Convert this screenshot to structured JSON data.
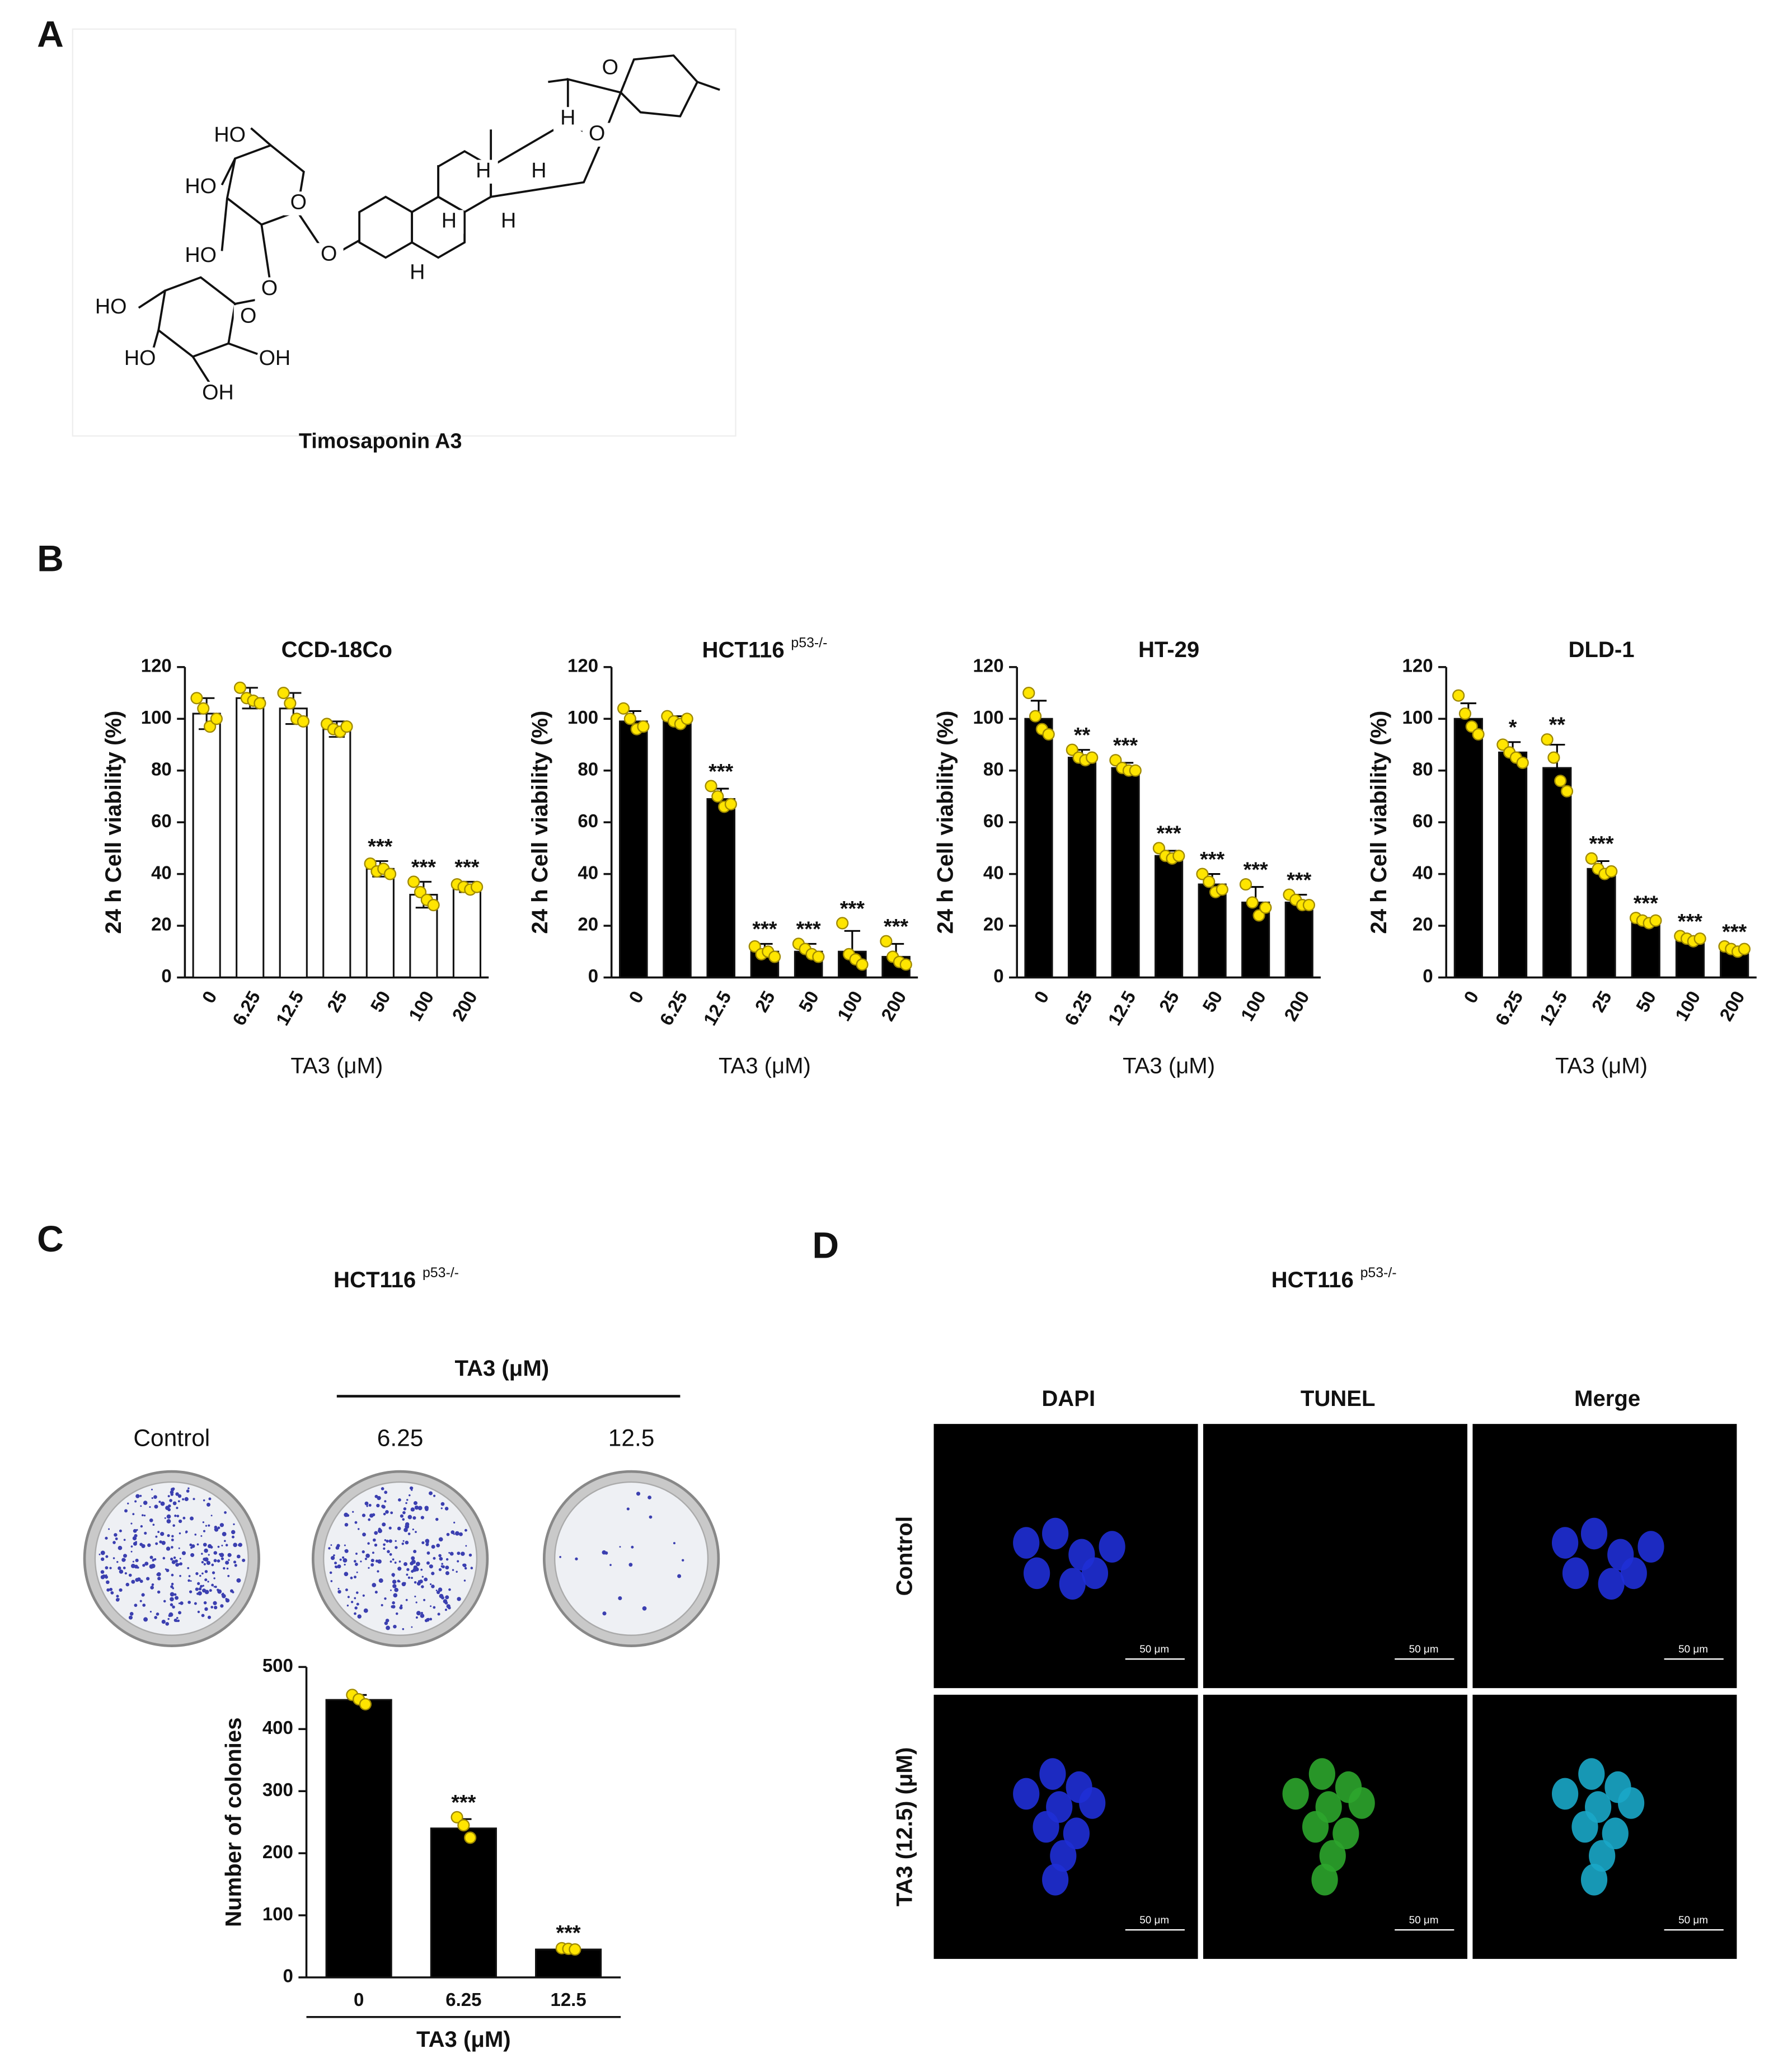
{
  "panel_labels": [
    "A",
    "B",
    "C",
    "D"
  ],
  "structure": {
    "name": "Timosaponin  A3",
    "atoms": [
      "HO",
      "HO",
      "O",
      "HO",
      "O",
      "O",
      "HO",
      "O",
      "HO",
      "OH",
      "OH",
      "H",
      "H",
      "H",
      "H",
      "H",
      "H",
      "O",
      "O"
    ]
  },
  "chart_data": [
    {
      "type": "bar",
      "title": "CCD-18Co",
      "ylabel": "24 h Cell viability (%)",
      "xlabel": "TA3  (μM)",
      "categories": [
        "0",
        "6.25",
        "12.5",
        "25",
        "50",
        "100",
        "200"
      ],
      "values": [
        102,
        108,
        104,
        96,
        42,
        32,
        35
      ],
      "errors": [
        6,
        4,
        6,
        3,
        3,
        5,
        2
      ],
      "points": [
        [
          108,
          104,
          97,
          100
        ],
        [
          112,
          108,
          107,
          106
        ],
        [
          110,
          106,
          100,
          99
        ],
        [
          98,
          96,
          95,
          97
        ],
        [
          44,
          41,
          42,
          40
        ],
        [
          37,
          33,
          30,
          28
        ],
        [
          36,
          35,
          34,
          35
        ]
      ],
      "annotations": [
        null,
        null,
        null,
        null,
        "***",
        "***",
        "***"
      ],
      "ylim": [
        0,
        120
      ],
      "yticks": [
        0,
        20,
        40,
        60,
        80,
        100,
        120
      ],
      "color": "#ffffff",
      "point_color": "#ffe500"
    },
    {
      "type": "bar",
      "title": "HCT116",
      "title_superscript": "p53-/-",
      "ylabel": "24 h Cell viability (%)",
      "xlabel": "TA3  (μM)",
      "categories": [
        "0",
        "6.25",
        "12.5",
        "25",
        "50",
        "100",
        "200"
      ],
      "values": [
        99,
        99,
        69,
        10,
        10,
        10,
        8
      ],
      "errors": [
        4,
        2,
        4,
        3,
        3,
        8,
        5
      ],
      "points": [
        [
          104,
          100,
          96,
          97
        ],
        [
          101,
          99,
          98,
          100
        ],
        [
          74,
          70,
          66,
          67
        ],
        [
          12,
          9,
          10,
          8
        ],
        [
          13,
          11,
          9,
          8
        ],
        [
          21,
          9,
          7,
          5
        ],
        [
          14,
          8,
          6,
          5
        ]
      ],
      "annotations": [
        null,
        null,
        "***",
        "***",
        "***",
        "***",
        "***"
      ],
      "ylim": [
        0,
        120
      ],
      "yticks": [
        0,
        20,
        40,
        60,
        80,
        100,
        120
      ],
      "color": "#000000",
      "point_color": "#ffe500"
    },
    {
      "type": "bar",
      "title": "HT-29",
      "ylabel": "24 h Cell viability (%)",
      "xlabel": "TA3  (μM)",
      "categories": [
        "0",
        "6.25",
        "12.5",
        "25",
        "50",
        "100",
        "200"
      ],
      "values": [
        100,
        85,
        81,
        47,
        36,
        29,
        29
      ],
      "errors": [
        7,
        3,
        2,
        2,
        4,
        6,
        3
      ],
      "points": [
        [
          110,
          101,
          96,
          94
        ],
        [
          88,
          85,
          84,
          85
        ],
        [
          84,
          81,
          80,
          80
        ],
        [
          50,
          47,
          46,
          47
        ],
        [
          40,
          37,
          33,
          34
        ],
        [
          36,
          29,
          24,
          27
        ],
        [
          32,
          30,
          28,
          28
        ]
      ],
      "annotations": [
        null,
        "**",
        "***",
        "***",
        "***",
        "***",
        "***"
      ],
      "ylim": [
        0,
        120
      ],
      "yticks": [
        0,
        20,
        40,
        60,
        80,
        100,
        120
      ],
      "color": "#000000",
      "point_color": "#ffe500"
    },
    {
      "type": "bar",
      "title": "DLD-1",
      "ylabel": "24 h Cell viability (%)",
      "xlabel": "TA3  (μM)",
      "categories": [
        "0",
        "6.25",
        "12.5",
        "25",
        "50",
        "100",
        "200"
      ],
      "values": [
        100,
        87,
        81,
        42,
        22,
        15,
        11
      ],
      "errors": [
        6,
        4,
        9,
        3,
        1,
        1,
        1
      ],
      "points": [
        [
          109,
          102,
          97,
          94
        ],
        [
          90,
          87,
          85,
          83
        ],
        [
          92,
          85,
          76,
          72
        ],
        [
          46,
          42,
          40,
          41
        ],
        [
          23,
          22,
          21,
          22
        ],
        [
          16,
          15,
          14,
          15
        ],
        [
          12,
          11,
          10,
          11
        ]
      ],
      "annotations": [
        null,
        "*",
        "**",
        "***",
        "***",
        "***",
        "***"
      ],
      "ylim": [
        0,
        120
      ],
      "yticks": [
        0,
        20,
        40,
        60,
        80,
        100,
        120
      ],
      "color": "#000000",
      "point_color": "#ffe500"
    },
    {
      "type": "bar",
      "ylabel": "Number of colonies",
      "xlabel": "TA3 (μM)",
      "categories": [
        "0",
        "6.25",
        "12.5"
      ],
      "values": [
        447,
        240,
        45
      ],
      "errors": [
        8,
        15,
        3
      ],
      "points": [
        [
          455,
          448,
          440
        ],
        [
          258,
          245,
          225
        ],
        [
          47,
          46,
          45
        ]
      ],
      "annotations": [
        null,
        "***",
        "***"
      ],
      "ylim": [
        0,
        500
      ],
      "yticks": [
        0,
        100,
        200,
        300,
        400,
        500
      ],
      "color": "#000000",
      "point_color": "#ffe500"
    }
  ],
  "panel_c": {
    "title": "HCT116",
    "title_superscript": "p53-/-",
    "treatment_label": "TA3 (μM)",
    "dish_labels": [
      "Control",
      "6.25",
      "12.5"
    ]
  },
  "panel_d": {
    "title": "HCT116",
    "title_superscript": "p53-/-",
    "columns": [
      "DAPI",
      "TUNEL",
      "Merge"
    ],
    "rows": [
      "Control",
      "TA3 (12.5) (μM)"
    ],
    "scale_bar": "50 μm"
  }
}
